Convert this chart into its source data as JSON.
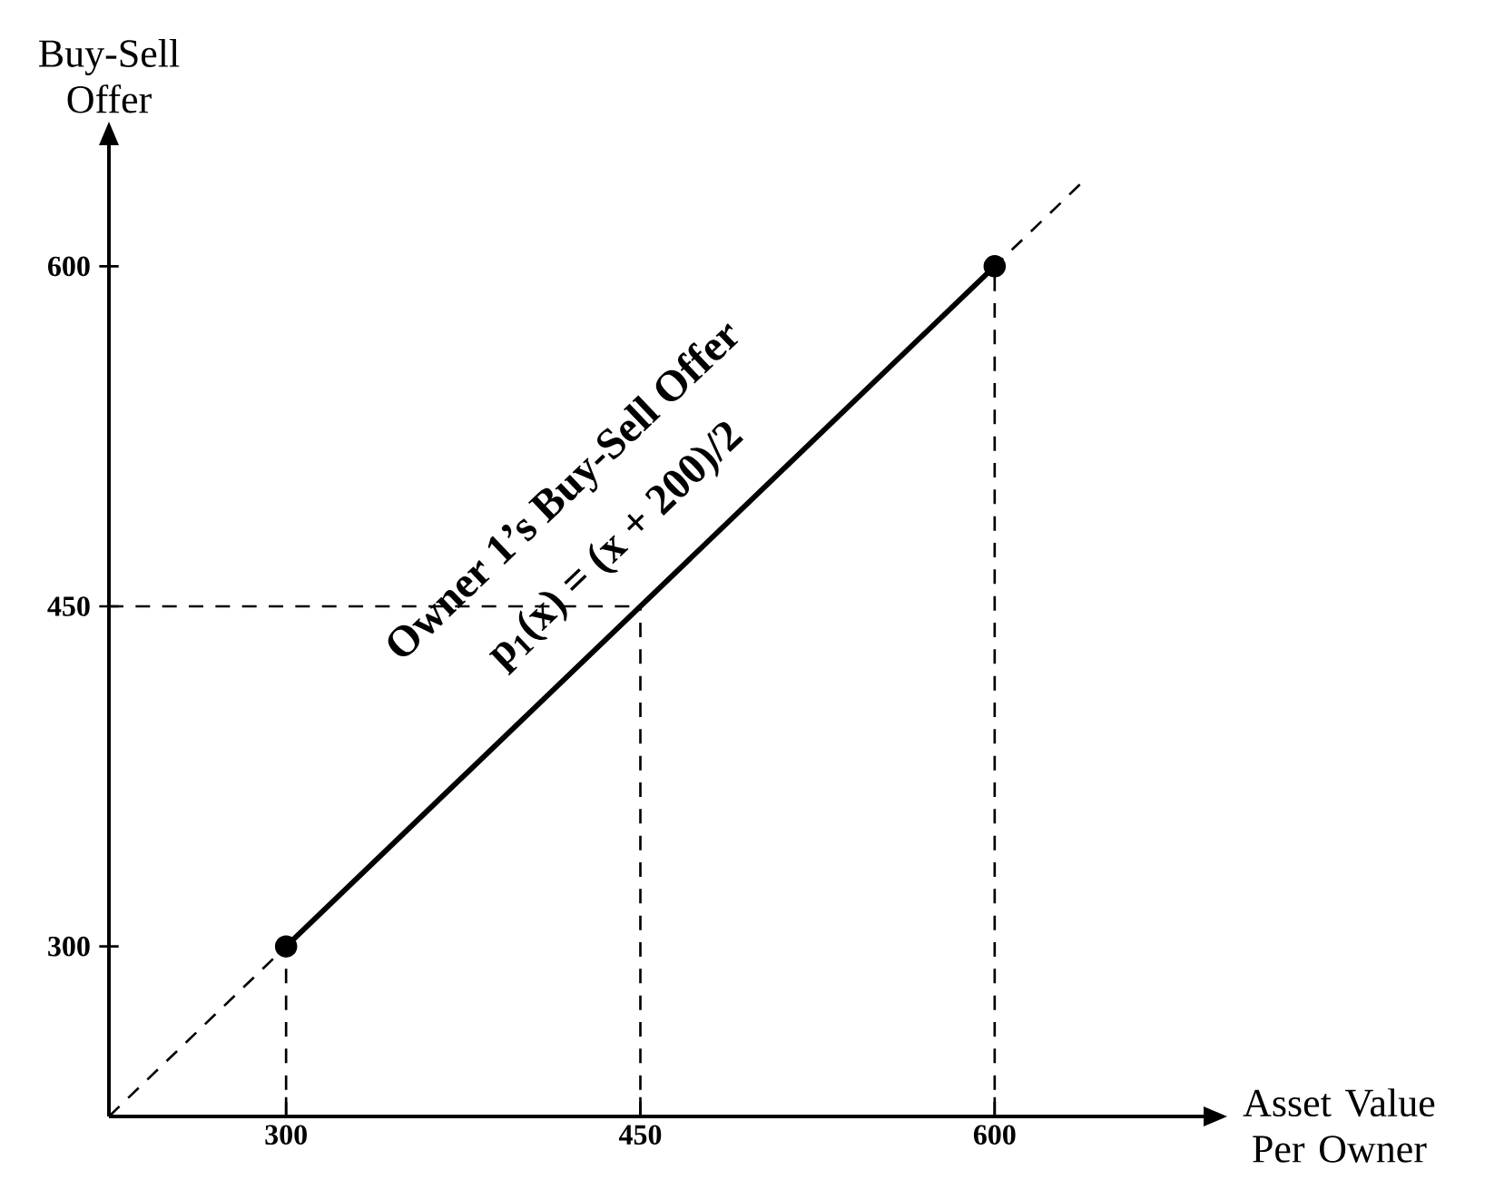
{
  "chart_data": {
    "type": "line",
    "xlabel": "Asset Value Per Owner",
    "ylabel": "Buy-Sell Offer",
    "xlim": [
      225,
      690
    ],
    "ylim": [
      225,
      655
    ],
    "xticks": [
      300,
      450,
      600
    ],
    "yticks": [
      300,
      450,
      600
    ],
    "grid": false,
    "legend": false,
    "series": [
      {
        "color": "#000000",
        "x": [
          300,
          600
        ],
        "values": [
          300,
          600
        ],
        "marker": "circle",
        "line_style": "solid"
      },
      {
        "color": "#000000",
        "x": [
          225,
          638
        ],
        "values": [
          225,
          638
        ],
        "marker": "none",
        "line_style": "dashed"
      }
    ],
    "ref_lines": [
      {
        "axis": "x",
        "value": 300,
        "line_style": "dashed"
      },
      {
        "axis": "x",
        "value": 450,
        "line_style": "dashed"
      },
      {
        "axis": "x",
        "value": 600,
        "line_style": "dashed"
      },
      {
        "axis": "y",
        "value": 450,
        "line_style": "dashed"
      }
    ],
    "annotations": [
      "Owner 1’s Buy-Sell Offer",
      "p$_{1}$(x) = (x + 200)/2"
    ]
  }
}
